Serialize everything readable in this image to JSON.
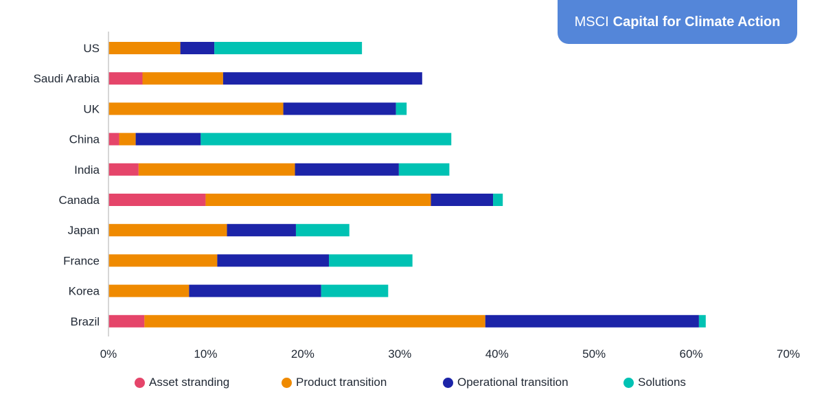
{
  "brand": {
    "light_text": "MSCI",
    "bold_text": "Capital for Climate Action",
    "color": "#5486d9"
  },
  "chart_data": {
    "type": "bar",
    "orientation": "horizontal",
    "stacked": true,
    "title": "",
    "xlabel": "",
    "ylabel": "",
    "xlim": [
      0,
      70
    ],
    "x_ticks": [
      0,
      10,
      20,
      30,
      40,
      50,
      60,
      70
    ],
    "x_tick_labels": [
      "0%",
      "10%",
      "20%",
      "30%",
      "40%",
      "50%",
      "60%",
      "70%"
    ],
    "grid": false,
    "legend_position": "bottom",
    "categories": [
      "US",
      "Saudi Arabia",
      "UK",
      "China",
      "India",
      "Canada",
      "Japan",
      "France",
      "Korea",
      "Brazil"
    ],
    "series": [
      {
        "name": "Asset stranding",
        "color": "#e5456a",
        "values": [
          0,
          3.5,
          0,
          1.1,
          3.1,
          10.0,
          0,
          0,
          0,
          3.7
        ]
      },
      {
        "name": "Product transition",
        "color": "#ef8a00",
        "values": [
          7.4,
          8.3,
          18.0,
          1.7,
          16.1,
          23.2,
          12.2,
          11.2,
          8.3,
          35.1
        ]
      },
      {
        "name": "Operational transition",
        "color": "#1c24a8",
        "values": [
          3.5,
          20.5,
          11.6,
          6.7,
          10.7,
          6.4,
          7.1,
          11.5,
          13.6,
          22.0
        ]
      },
      {
        "name": "Solutions",
        "color": "#00c2b3",
        "values": [
          15.2,
          0,
          1.1,
          25.8,
          5.2,
          1.0,
          5.5,
          8.6,
          6.9,
          0.7
        ]
      }
    ]
  }
}
